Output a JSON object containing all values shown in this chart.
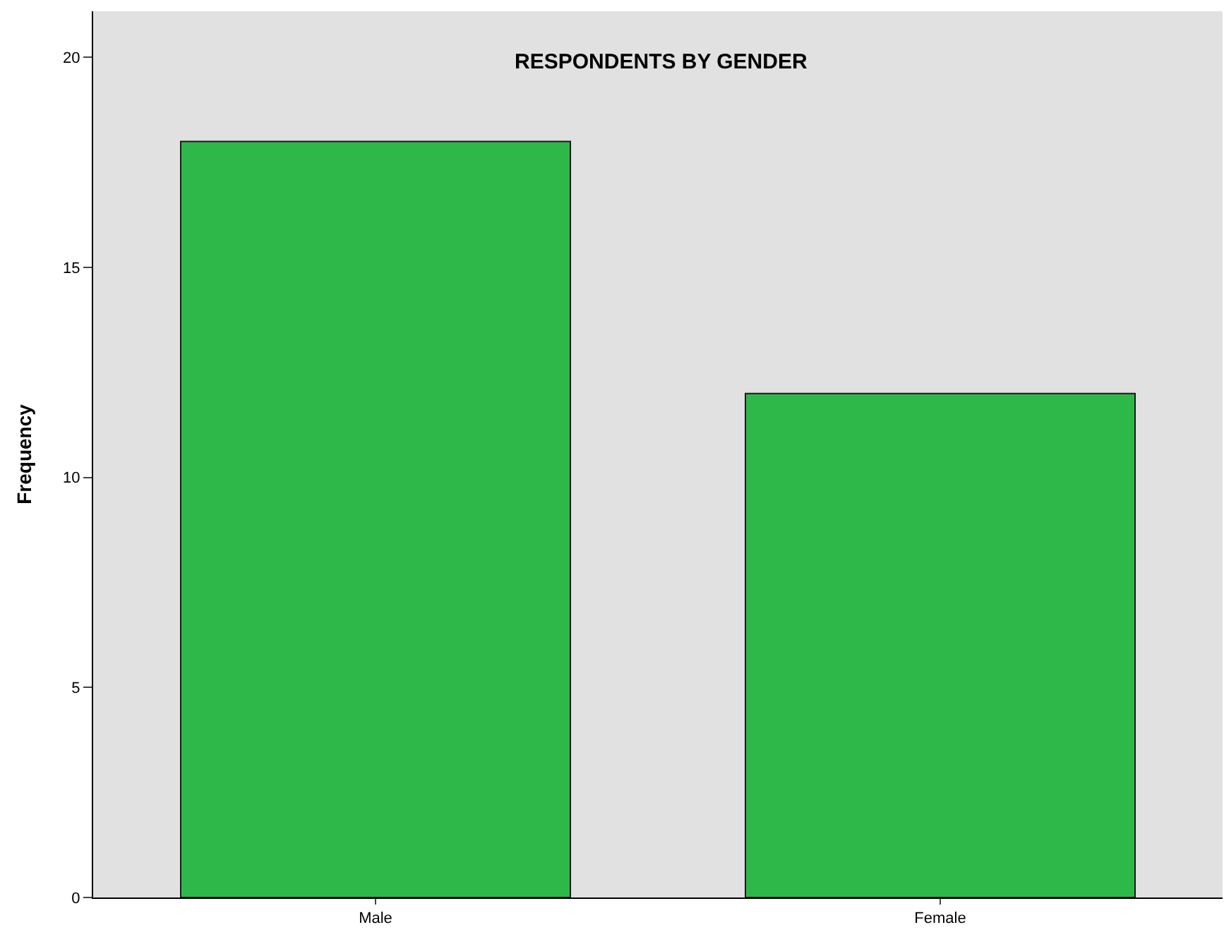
{
  "chart_data": {
    "type": "bar",
    "title": "RESPONDENTS BY GENDER",
    "ylabel": "Frequency",
    "categories": [
      "Male",
      "Female"
    ],
    "values": [
      18,
      12
    ],
    "color": "#2fb84a",
    "ylim": [
      0,
      21.1
    ],
    "yticks": [
      0,
      5,
      10,
      15,
      20
    ],
    "grid": false
  }
}
